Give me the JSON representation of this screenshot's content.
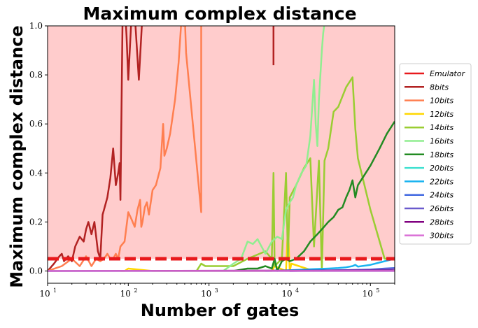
{
  "chart_data": {
    "type": "line",
    "title": "Maximum complex distance",
    "xlabel": "Number of gates",
    "ylabel": "Maximum complex distance",
    "xscale": "log",
    "xlim": [
      10,
      200000
    ],
    "ylim": [
      -0.05,
      1.0
    ],
    "x_ticks": [
      {
        "value": 10,
        "base": "10",
        "exp": "1"
      },
      {
        "value": 100,
        "base": "10",
        "exp": "2"
      },
      {
        "value": 1000,
        "base": "10",
        "exp": "3"
      },
      {
        "value": 10000,
        "base": "10",
        "exp": "4"
      },
      {
        "value": 100000,
        "base": "10",
        "exp": "5"
      }
    ],
    "y_ticks": [
      {
        "value": 0.0,
        "label": "0.0"
      },
      {
        "value": 0.2,
        "label": "0.2"
      },
      {
        "value": 0.4,
        "label": "0.4"
      },
      {
        "value": 0.6,
        "label": "0.6"
      },
      {
        "value": 0.8,
        "label": "0.8"
      },
      {
        "value": 1.0,
        "label": "1.0"
      }
    ],
    "shaded_region": {
      "y_from": 0.05,
      "y_to": 1.0,
      "color": "#ffcccc"
    },
    "grid": false,
    "legend_position": "right-outside",
    "series": [
      {
        "name": "Emulator",
        "color": "#e8191c",
        "dashed": true,
        "width": 5,
        "x": [
          10,
          200000
        ],
        "y": [
          0.05,
          0.05
        ]
      },
      {
        "name": "8bits",
        "color": "#b22222",
        "width": 2.5,
        "x": [
          10,
          12,
          14,
          15,
          16,
          18,
          20,
          22,
          25,
          28,
          30,
          32,
          35,
          38,
          42,
          45,
          48,
          50,
          55,
          60,
          65,
          70,
          75,
          78,
          80,
          85,
          90,
          95,
          100,
          110,
          120,
          135,
          150,
          160
        ],
        "y": [
          0.0,
          0.03,
          0.06,
          0.07,
          0.04,
          0.06,
          0.04,
          0.1,
          0.14,
          0.12,
          0.17,
          0.2,
          0.15,
          0.2,
          0.08,
          0.05,
          0.23,
          0.25,
          0.3,
          0.38,
          0.5,
          0.35,
          0.4,
          0.44,
          0.29,
          1.05,
          1.1,
          0.96,
          0.78,
          1.05,
          1.05,
          0.78,
          1.05,
          1.05
        ]
      },
      {
        "name": "8bits",
        "color": "#b22222",
        "width": 2.5,
        "x": [
          6300,
          6300
        ],
        "y": [
          1.05,
          0.84
        ]
      },
      {
        "name": "10bits",
        "color": "#ff7f50",
        "width": 2.5,
        "x": [
          10,
          15,
          20,
          25,
          30,
          35,
          40,
          45,
          50,
          55,
          60,
          65,
          70,
          75,
          80,
          90,
          100,
          110,
          120,
          130,
          140,
          145,
          150,
          160,
          170,
          180,
          200,
          220,
          250,
          270,
          280,
          300,
          330,
          380,
          420,
          460,
          480,
          500,
          520,
          800,
          800
        ],
        "y": [
          0.0,
          0.02,
          0.05,
          0.02,
          0.06,
          0.02,
          0.05,
          0.04,
          0.05,
          0.07,
          0.05,
          0.05,
          0.07,
          0.05,
          0.1,
          0.12,
          0.24,
          0.21,
          0.18,
          0.25,
          0.29,
          0.18,
          0.2,
          0.26,
          0.28,
          0.23,
          0.33,
          0.35,
          0.42,
          0.6,
          0.47,
          0.5,
          0.56,
          0.7,
          0.85,
          1.05,
          1.0,
          1.05,
          0.89,
          0.24,
          1.05
        ]
      },
      {
        "name": "12bits",
        "color": "#ffd700",
        "width": 2.5,
        "x": [
          80,
          90,
          100,
          200,
          500,
          1000,
          3000,
          6000,
          6500,
          9000,
          9500,
          10000,
          10500,
          20000
        ],
        "y": [
          0.0,
          0.0,
          0.01,
          0.0,
          0.0,
          0.0,
          0.0,
          0.0,
          0.02,
          0.0,
          0.18,
          0.0,
          0.03,
          0.0
        ]
      },
      {
        "name": "14bits",
        "color": "#9acd32",
        "width": 2.5,
        "x": [
          700,
          800,
          900,
          1000,
          2000,
          3000,
          5000,
          6000,
          6300,
          6500,
          8000,
          9000,
          9500,
          10000,
          12000,
          15000,
          18000,
          20000,
          23000,
          25000,
          27000,
          30000,
          35000,
          40000,
          50000,
          60000,
          65000,
          70000,
          100000,
          150000,
          200000
        ],
        "y": [
          0.0,
          0.03,
          0.02,
          0.02,
          0.02,
          0.05,
          0.08,
          0.05,
          0.4,
          0.02,
          0.05,
          0.4,
          0.05,
          0.3,
          0.35,
          0.42,
          0.46,
          0.1,
          0.45,
          0.0,
          0.45,
          0.5,
          0.65,
          0.67,
          0.75,
          0.79,
          0.58,
          0.46,
          0.25,
          0.05,
          0.05
        ]
      },
      {
        "name": "16bits",
        "color": "#90ee90",
        "width": 2.5,
        "x": [
          1500,
          2000,
          2500,
          3000,
          3500,
          4000,
          5000,
          6000,
          7000,
          8000,
          9000,
          10000,
          11000,
          12000,
          14000,
          16000,
          18000,
          20000,
          21000,
          22000,
          23000,
          24000,
          25000,
          26000,
          28000
        ],
        "y": [
          0.0,
          0.03,
          0.05,
          0.12,
          0.11,
          0.13,
          0.07,
          0.12,
          0.14,
          0.13,
          0.25,
          0.28,
          0.3,
          0.35,
          0.4,
          0.43,
          0.55,
          0.78,
          0.6,
          0.51,
          0.7,
          0.8,
          0.9,
          0.97,
          1.05
        ]
      },
      {
        "name": "18bits",
        "color": "#228b22",
        "width": 2.5,
        "x": [
          2000,
          3000,
          4000,
          5000,
          6000,
          6500,
          7000,
          8000,
          9000,
          10000,
          12000,
          15000,
          18000,
          22000,
          25000,
          30000,
          35000,
          40000,
          45000,
          50000,
          55000,
          60000,
          65000,
          70000,
          80000,
          100000,
          130000,
          160000,
          200000
        ],
        "y": [
          0.0,
          0.01,
          0.01,
          0.02,
          0.01,
          0.05,
          0.0,
          0.04,
          0.05,
          0.04,
          0.05,
          0.08,
          0.12,
          0.15,
          0.17,
          0.2,
          0.22,
          0.25,
          0.26,
          0.3,
          0.33,
          0.37,
          0.3,
          0.35,
          0.38,
          0.43,
          0.5,
          0.56,
          0.61
        ]
      },
      {
        "name": "20bits",
        "color": "#40e0d0",
        "width": 2.5,
        "x": [
          10,
          200000
        ],
        "y": [
          0.0,
          0.0
        ]
      },
      {
        "name": "22bits",
        "color": "#1ab3f0",
        "width": 2.5,
        "x": [
          5000,
          10000,
          20000,
          30000,
          40000,
          50000,
          60000,
          65000,
          70000,
          100000,
          150000,
          200000
        ],
        "y": [
          0.0,
          0.003,
          0.008,
          0.01,
          0.012,
          0.015,
          0.02,
          0.025,
          0.018,
          0.025,
          0.04,
          0.05
        ]
      },
      {
        "name": "24bits",
        "color": "#4169e1",
        "width": 2.5,
        "x": [
          10000,
          50000,
          100000,
          150000,
          200000
        ],
        "y": [
          0.0,
          0.003,
          0.006,
          0.01,
          0.012
        ]
      },
      {
        "name": "26bits",
        "color": "#6a5acd",
        "width": 2.5,
        "x": [
          10000,
          100000,
          200000
        ],
        "y": [
          0.0,
          0.005,
          0.01
        ]
      },
      {
        "name": "28bits",
        "color": "#800080",
        "width": 2.5,
        "x": [
          10,
          200000
        ],
        "y": [
          0.0,
          0.002
        ]
      },
      {
        "name": "30bits",
        "color": "#da70d6",
        "width": 2.5,
        "x": [
          10,
          200000
        ],
        "y": [
          0.0,
          0.0
        ]
      }
    ],
    "legend": [
      {
        "label": "Emulator",
        "color": "#e8191c"
      },
      {
        "label": "8bits",
        "color": "#b22222"
      },
      {
        "label": "10bits",
        "color": "#ff7f50"
      },
      {
        "label": "12bits",
        "color": "#ffd700"
      },
      {
        "label": "14bits",
        "color": "#9acd32"
      },
      {
        "label": "16bits",
        "color": "#90ee90"
      },
      {
        "label": "18bits",
        "color": "#228b22"
      },
      {
        "label": "20bits",
        "color": "#40e0d0"
      },
      {
        "label": "22bits",
        "color": "#1ab3f0"
      },
      {
        "label": "24bits",
        "color": "#4169e1"
      },
      {
        "label": "26bits",
        "color": "#6a5acd"
      },
      {
        "label": "28bits",
        "color": "#800080"
      },
      {
        "label": "30bits",
        "color": "#da70d6"
      }
    ]
  }
}
